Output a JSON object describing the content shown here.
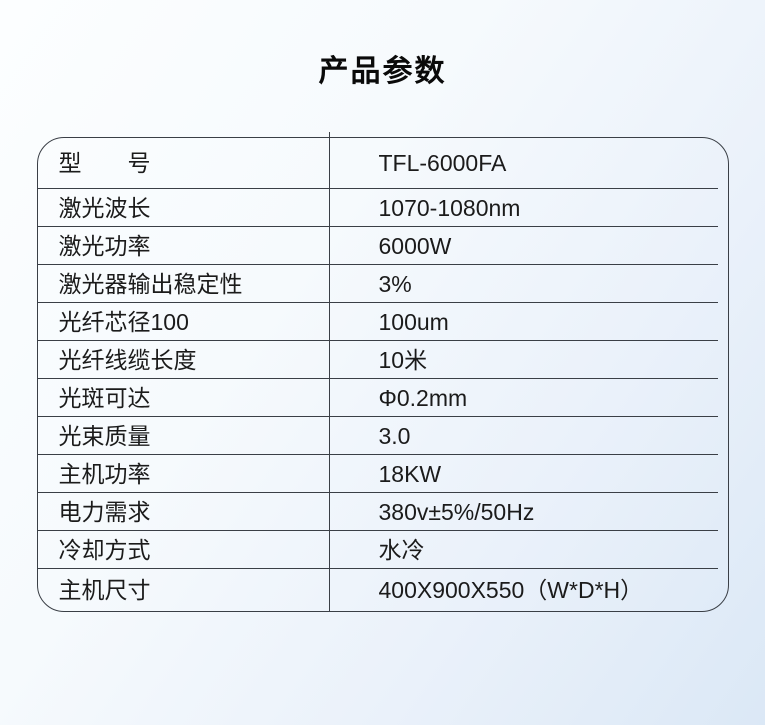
{
  "page": {
    "title": "产品参数"
  },
  "colors": {
    "border": "#3a3f46",
    "text": "#1b1b1b",
    "background_top": "#fcfeff",
    "background_bottom": "#dbe8f6"
  },
  "table": {
    "rows": [
      {
        "label": "型　　号",
        "value": "TFL-6000FA"
      },
      {
        "label": "激光波长",
        "value": "1070-1080nm"
      },
      {
        "label": "激光功率",
        "value": "6000W"
      },
      {
        "label": "激光器输出稳定性",
        "value": "3%"
      },
      {
        "label": "光纤芯径100",
        "value": "100um"
      },
      {
        "label": "光纤线缆长度",
        "value": "10米"
      },
      {
        "label": "光斑可达",
        "value": "Φ0.2mm"
      },
      {
        "label": "光束质量",
        "value": "3.0"
      },
      {
        "label": "主机功率",
        "value": "18KW"
      },
      {
        "label": "电力需求",
        "value": "380v±5%/50Hz"
      },
      {
        "label": "冷却方式",
        "value": "水冷"
      },
      {
        "label": "主机尺寸",
        "value": "400X900X550（W*D*H）"
      }
    ]
  }
}
